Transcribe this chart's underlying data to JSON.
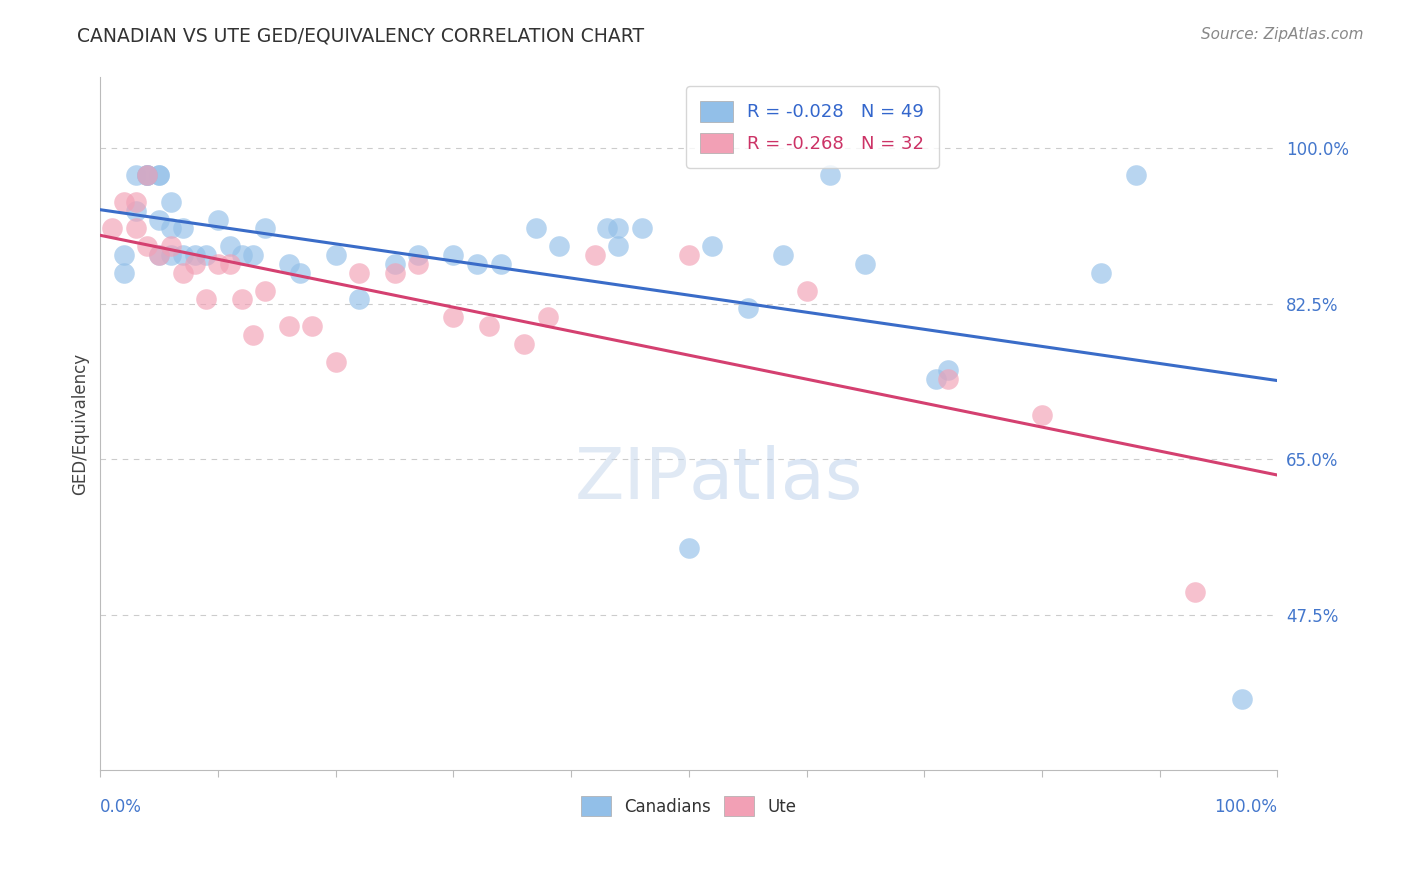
{
  "title": "CANADIAN VS UTE GED/EQUIVALENCY CORRELATION CHART",
  "source": "Source: ZipAtlas.com",
  "ylabel": "GED/Equivalency",
  "ytick_labels": [
    "47.5%",
    "65.0%",
    "82.5%",
    "100.0%"
  ],
  "ytick_values": [
    0.475,
    0.65,
    0.825,
    1.0
  ],
  "xlim": [
    0.0,
    1.0
  ],
  "ylim": [
    0.3,
    1.08
  ],
  "legend_r_canadian": "R = -0.028",
  "legend_n_canadian": "N = 49",
  "legend_r_ute": "R = -0.268",
  "legend_n_ute": "N = 32",
  "canadian_color": "#92BFE8",
  "ute_color": "#F2A0B5",
  "canadian_line_color": "#3A6CC8",
  "ute_line_color": "#D44070",
  "background_color": "#ffffff",
  "canadians_x": [
    0.02,
    0.02,
    0.03,
    0.03,
    0.04,
    0.04,
    0.04,
    0.05,
    0.05,
    0.05,
    0.05,
    0.06,
    0.06,
    0.06,
    0.07,
    0.07,
    0.08,
    0.09,
    0.1,
    0.11,
    0.12,
    0.13,
    0.14,
    0.16,
    0.17,
    0.2,
    0.22,
    0.25,
    0.27,
    0.3,
    0.32,
    0.34,
    0.37,
    0.39,
    0.43,
    0.44,
    0.44,
    0.46,
    0.5,
    0.52,
    0.55,
    0.58,
    0.62,
    0.65,
    0.71,
    0.72,
    0.85,
    0.88,
    0.97
  ],
  "canadians_y": [
    0.88,
    0.86,
    0.97,
    0.93,
    0.97,
    0.97,
    0.97,
    0.97,
    0.97,
    0.92,
    0.88,
    0.94,
    0.91,
    0.88,
    0.91,
    0.88,
    0.88,
    0.88,
    0.92,
    0.89,
    0.88,
    0.88,
    0.91,
    0.87,
    0.86,
    0.88,
    0.83,
    0.87,
    0.88,
    0.88,
    0.87,
    0.87,
    0.91,
    0.89,
    0.91,
    0.91,
    0.89,
    0.91,
    0.55,
    0.89,
    0.82,
    0.88,
    0.97,
    0.87,
    0.74,
    0.75,
    0.86,
    0.97,
    0.38
  ],
  "utes_x": [
    0.01,
    0.02,
    0.03,
    0.03,
    0.04,
    0.04,
    0.05,
    0.06,
    0.07,
    0.08,
    0.09,
    0.1,
    0.11,
    0.12,
    0.13,
    0.14,
    0.16,
    0.18,
    0.2,
    0.22,
    0.25,
    0.27,
    0.3,
    0.33,
    0.36,
    0.38,
    0.42,
    0.5,
    0.6,
    0.72,
    0.8,
    0.93
  ],
  "utes_y": [
    0.91,
    0.94,
    0.94,
    0.91,
    0.97,
    0.89,
    0.88,
    0.89,
    0.86,
    0.87,
    0.83,
    0.87,
    0.87,
    0.83,
    0.79,
    0.84,
    0.8,
    0.8,
    0.76,
    0.86,
    0.86,
    0.87,
    0.81,
    0.8,
    0.78,
    0.81,
    0.88,
    0.88,
    0.84,
    0.74,
    0.7,
    0.5
  ]
}
